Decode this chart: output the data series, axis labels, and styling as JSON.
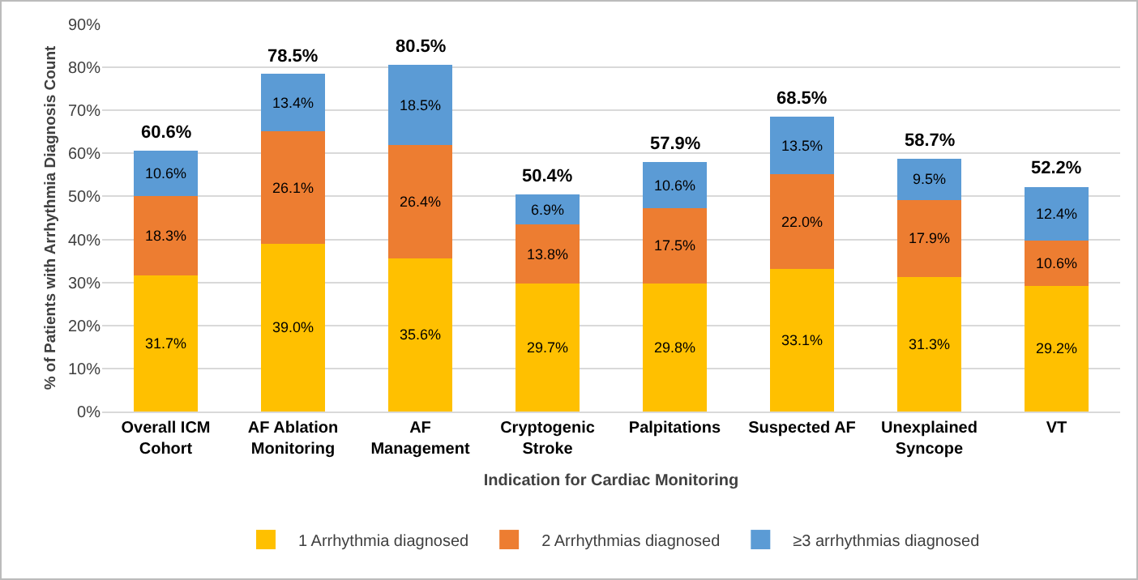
{
  "chart_data": {
    "type": "bar",
    "stacked": true,
    "xlabel": "Indication for Cardiac Monitoring",
    "ylabel": "% of Patients with Arrhythmia Diagnosis Count",
    "categories": [
      "Overall ICM Cohort",
      "AF Ablation Monitoring",
      "AF Management",
      "Cryptogenic Stroke",
      "Palpitations",
      "Suspected AF",
      "Unexplained Syncope",
      "VT"
    ],
    "series": [
      {
        "name": "1 Arrhythmia diagnosed",
        "color": "#ffc000",
        "values": [
          31.7,
          39.0,
          35.6,
          29.7,
          29.8,
          33.1,
          31.3,
          29.2
        ],
        "value_labels": [
          "31.7%",
          "39.0%",
          "35.6%",
          "29.7%",
          "29.8%",
          "33.1%",
          "31.3%",
          "29.2%"
        ]
      },
      {
        "name": "2 Arrhythmias diagnosed",
        "color": "#ed7d31",
        "values": [
          18.3,
          26.1,
          26.4,
          13.8,
          17.5,
          22.0,
          17.9,
          10.6
        ],
        "value_labels": [
          "18.3%",
          "26.1%",
          "26.4%",
          "13.8%",
          "17.5%",
          "22.0%",
          "17.9%",
          "10.6%"
        ]
      },
      {
        "name": "≥3 arrhythmias diagnosed",
        "color": "#5b9bd5",
        "values": [
          10.6,
          13.4,
          18.5,
          6.9,
          10.6,
          13.5,
          9.5,
          12.4
        ],
        "value_labels": [
          "10.6%",
          "13.4%",
          "18.5%",
          "6.9%",
          "10.6%",
          "13.5%",
          "9.5%",
          "12.4%"
        ]
      }
    ],
    "totals": [
      "60.6%",
      "78.5%",
      "80.5%",
      "50.4%",
      "57.9%",
      "68.5%",
      "58.7%",
      "52.2%"
    ],
    "ylim": [
      0,
      90
    ],
    "yticks": [
      {
        "value": 0,
        "label": "0%"
      },
      {
        "value": 10,
        "label": "10%"
      },
      {
        "value": 20,
        "label": "20%"
      },
      {
        "value": 30,
        "label": "30%"
      },
      {
        "value": 40,
        "label": "40%"
      },
      {
        "value": 50,
        "label": "50%"
      },
      {
        "value": 60,
        "label": "60%"
      },
      {
        "value": 70,
        "label": "70%"
      },
      {
        "value": 80,
        "label": "80%"
      },
      {
        "value": 90,
        "label": "90%"
      }
    ],
    "grid": "y",
    "legend": "bottom"
  }
}
